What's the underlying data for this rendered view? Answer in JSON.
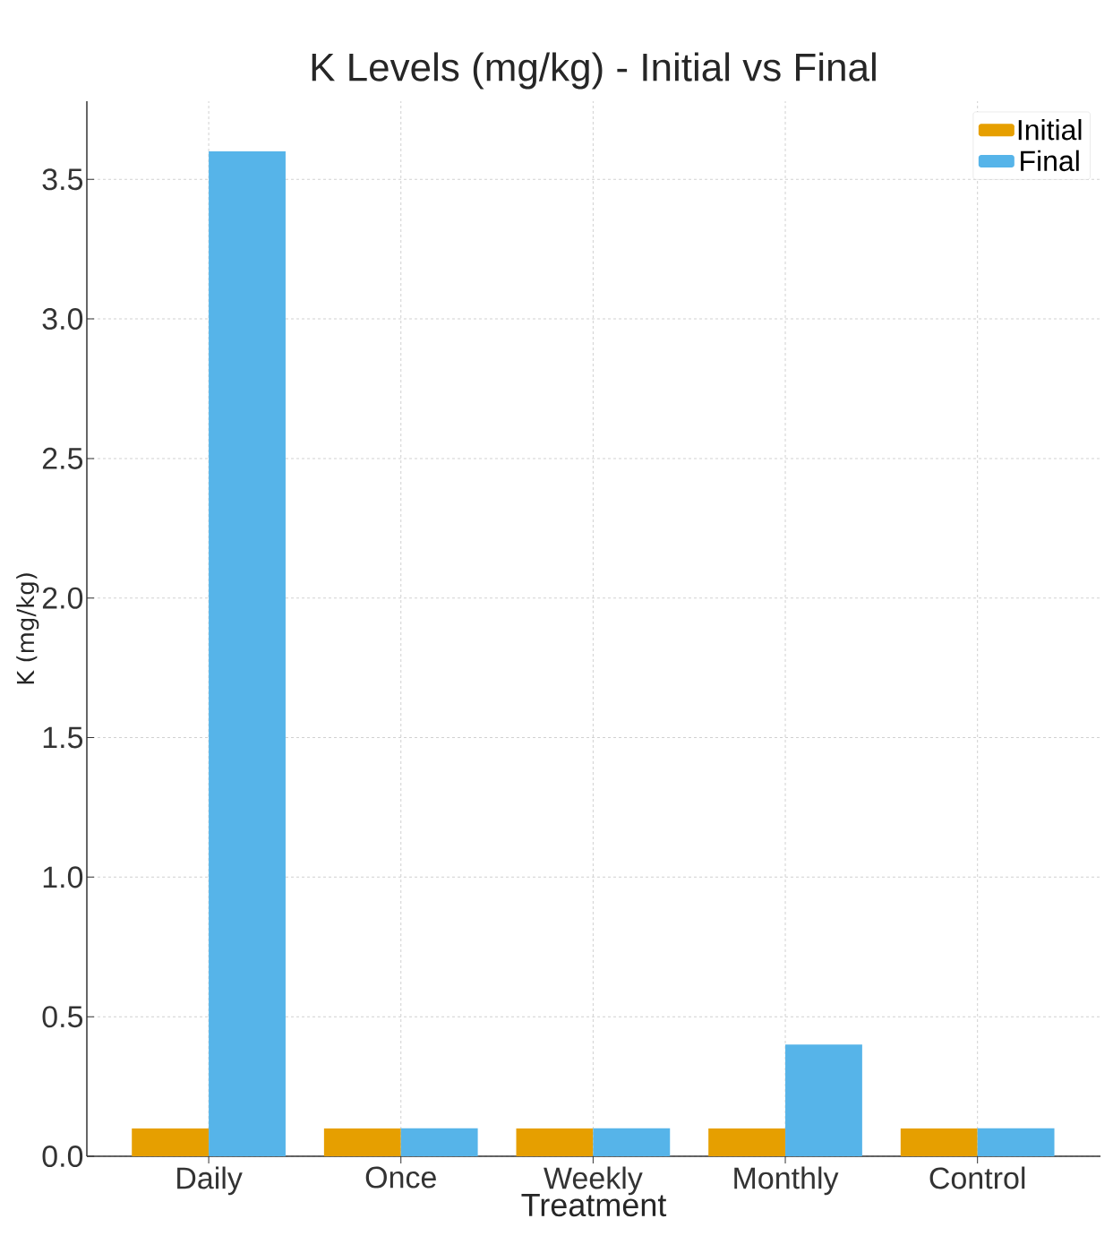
{
  "chart_data": {
    "type": "bar",
    "title": "K Levels (mg/kg) - Initial vs Final",
    "xlabel": "Treatment",
    "ylabel": "K (mg/kg)",
    "categories": [
      "Daily",
      "Once",
      "Weekly",
      "Monthly",
      "Control"
    ],
    "series": [
      {
        "name": "Initial",
        "color": "#e69f00",
        "values": [
          0.1,
          0.1,
          0.1,
          0.1,
          0.1
        ]
      },
      {
        "name": "Final",
        "color": "#56b4e9",
        "values": [
          3.6,
          0.1,
          0.1,
          0.4,
          0.1
        ]
      }
    ],
    "ylim": [
      0,
      3.78
    ],
    "yticks": [
      {
        "value": 0,
        "label": "0.0"
      },
      {
        "value": 0.5,
        "label": "0.5"
      },
      {
        "value": 1,
        "label": "1.0"
      },
      {
        "value": 1.5,
        "label": "1.5"
      },
      {
        "value": 2,
        "label": "2.0"
      },
      {
        "value": 2.5,
        "label": "2.5"
      },
      {
        "value": 3,
        "label": "3.0"
      },
      {
        "value": 3.5,
        "label": "3.5"
      }
    ],
    "grid": true,
    "legend": "top right"
  }
}
